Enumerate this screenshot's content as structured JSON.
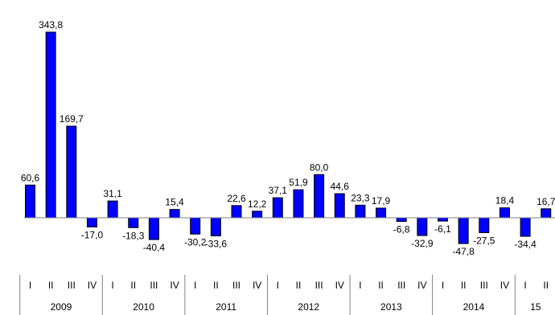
{
  "chart_data": {
    "type": "bar",
    "colors": {
      "bar": "#0000FF",
      "bar_border": "#000000",
      "axis": "#808080"
    },
    "grid": false,
    "ylim": [
      -60,
      345
    ],
    "quarter_labels": [
      "I",
      "II",
      "III",
      "IV",
      "I",
      "II",
      "III",
      "IV",
      "I",
      "II",
      "III",
      "IV",
      "I",
      "II",
      "III",
      "IV",
      "I",
      "II",
      "III",
      "IV",
      "I",
      "II",
      "III",
      "IV",
      "I",
      "II"
    ],
    "year_labels": [
      "2009",
      "2010",
      "2011",
      "2012",
      "2013",
      "2014",
      "15"
    ],
    "values": [
      60.6,
      343.8,
      169.7,
      -17.0,
      31.1,
      -18.3,
      -40.4,
      15.4,
      -30.2,
      -33.6,
      22.6,
      12.2,
      37.1,
      51.9,
      80.0,
      44.6,
      23.3,
      17.9,
      -6.8,
      -32.9,
      -6.1,
      -47.8,
      -27.5,
      18.4,
      -34.4,
      16.7
    ],
    "data_labels": [
      "60,6",
      "343,8",
      "169,7",
      "-17,0",
      "31,1",
      "-18,3",
      "-40,4",
      "15,4",
      "-30,2",
      "-33,6",
      "22,6",
      "12,2",
      "37,1",
      "51,9",
      "80,0",
      "44,6",
      "23,3",
      "17,9",
      "-6,8",
      "-32,9",
      "-6,1",
      "-47,8",
      "-27,5",
      "18,4",
      "-34,4",
      "16,7"
    ]
  }
}
